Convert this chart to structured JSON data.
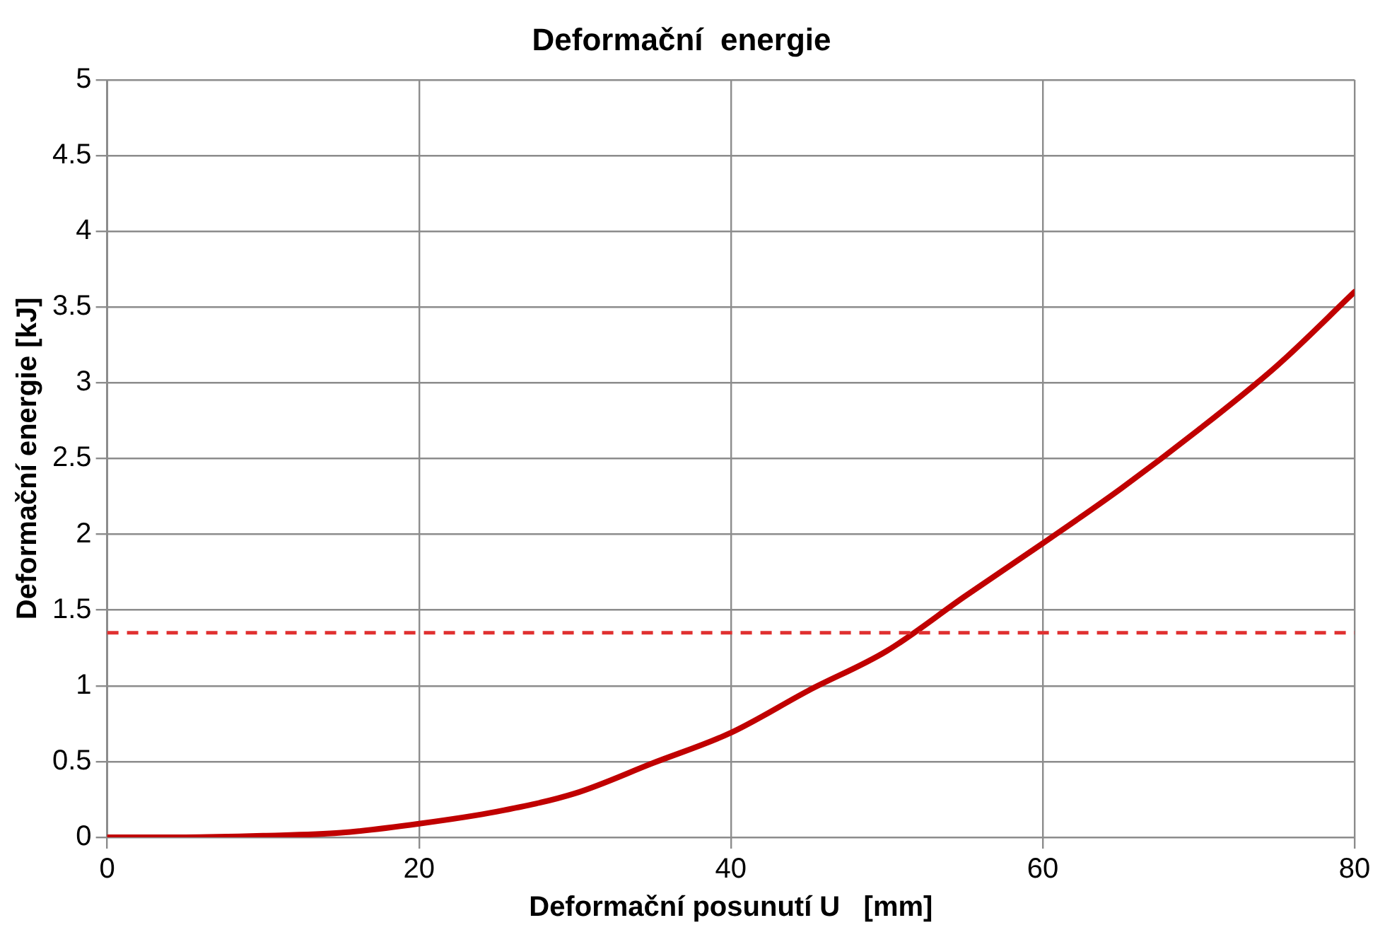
{
  "chart_data": {
    "type": "line",
    "title": "Deformační  energie",
    "xlabel": "Deformační posunutí U   [mm]",
    "ylabel": "Deformační energie [kJ]",
    "x": [
      0,
      5,
      10,
      15,
      20,
      25,
      30,
      35,
      40,
      45,
      50,
      55,
      60,
      65,
      70,
      75,
      80
    ],
    "series": [
      {
        "color": "#c00000",
        "values": [
          0,
          0,
          0.01,
          0.03,
          0.09,
          0.17,
          0.29,
          0.49,
          0.69,
          0.97,
          1.23,
          1.59,
          1.94,
          2.3,
          2.69,
          3.11,
          3.6
        ]
      }
    ],
    "ref_lines": [
      {
        "axis": "y",
        "value": 1.35,
        "color": "#e03030",
        "line_style": "dashed"
      }
    ],
    "xlim": [
      0,
      80
    ],
    "xticks": [
      0,
      20,
      40,
      60,
      80
    ],
    "ylim": [
      0,
      5
    ],
    "yticks": [
      0,
      0.5,
      1,
      1.5,
      2,
      2.5,
      3,
      3.5,
      4,
      4.5,
      5
    ],
    "grid": true,
    "legend": false,
    "marker": "none",
    "line_style": "solid"
  }
}
